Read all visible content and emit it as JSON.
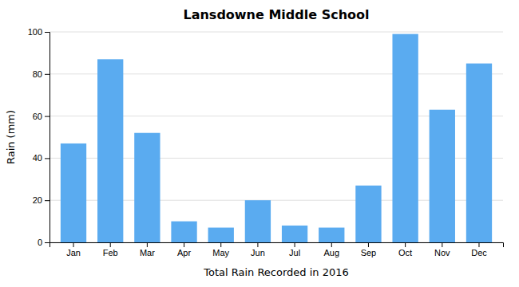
{
  "chart_data": {
    "type": "bar",
    "title": "Lansdowne Middle School",
    "xlabel": "Total Rain Recorded in 2016",
    "ylabel": "Rain (mm)",
    "categories": [
      "Jan",
      "Feb",
      "Mar",
      "Apr",
      "May",
      "Jun",
      "Jul",
      "Aug",
      "Sep",
      "Oct",
      "Nov",
      "Dec"
    ],
    "values": [
      47,
      87,
      52,
      10,
      7,
      20,
      8,
      7,
      27,
      99,
      63,
      85
    ],
    "color": "#5aabf0",
    "ylim": [
      0,
      100
    ],
    "yticks": [
      0,
      20,
      40,
      60,
      80,
      100
    ],
    "grid": true
  }
}
